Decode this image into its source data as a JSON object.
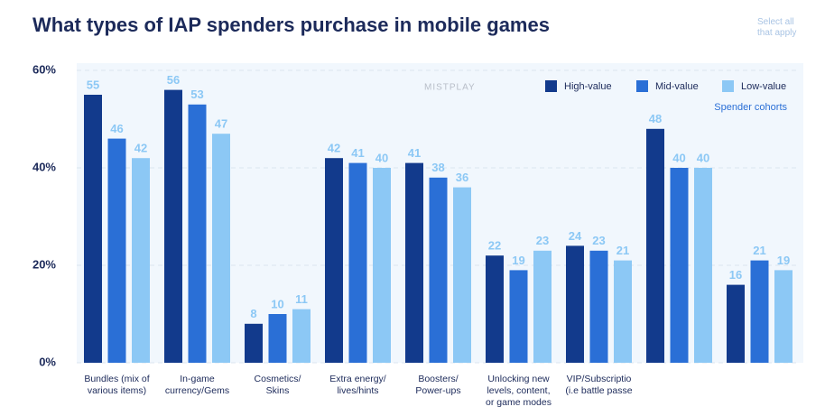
{
  "chart_data": {
    "type": "bar",
    "title": "What types of IAP spenders purchase in mobile games",
    "subtitle": "Select all\nthat apply",
    "watermark": "MISTPLAY",
    "legend_title": "Spender cohorts",
    "legend_position": "top-right",
    "categories": [
      "Bundles (mix of\nvarious items)",
      "In-game\ncurrency/Gems",
      "Cosmetics/\nSkins",
      "Extra energy/\nlives/hints",
      "Boosters/\nPower-ups",
      "Unlocking new\nlevels, content,\nor game modes",
      "VIP/Subscriptio\n(i.e battle passe",
      null,
      null
    ],
    "series": [
      {
        "name": "High-value",
        "color": "#123a8c",
        "values": [
          55,
          56,
          8,
          42,
          41,
          22,
          24,
          48,
          16
        ]
      },
      {
        "name": "Mid-value",
        "color": "#2a6fd6",
        "values": [
          46,
          53,
          10,
          41,
          38,
          19,
          23,
          40,
          21
        ]
      },
      {
        "name": "Low-value",
        "color": "#8cc8f5",
        "values": [
          42,
          47,
          11,
          40,
          36,
          23,
          21,
          40,
          19
        ]
      }
    ],
    "ylim": [
      0,
      60
    ],
    "yticks": [
      {
        "value": 0,
        "label": "0%"
      },
      {
        "value": 20,
        "label": "20%"
      },
      {
        "value": 40,
        "label": "40%"
      },
      {
        "value": 60,
        "label": "60%"
      }
    ],
    "grid": true
  }
}
